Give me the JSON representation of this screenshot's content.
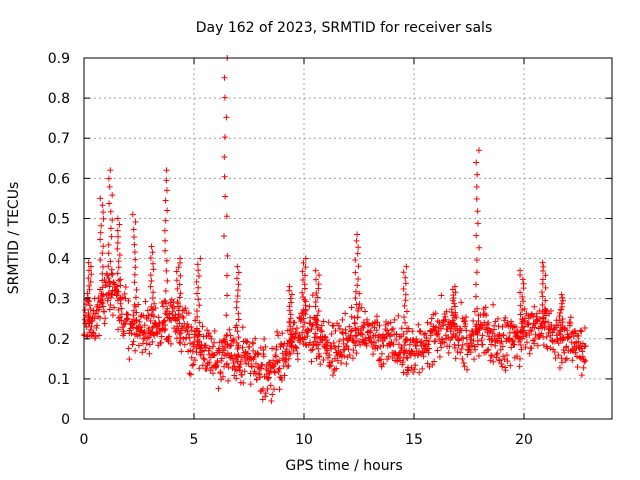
{
  "chart_data": {
    "type": "scatter",
    "title": "Day 162 of 2023, SRMTID for receiver sals",
    "xlabel": "GPS time / hours",
    "ylabel": "SRMTID / TECUs",
    "xlim": [
      0,
      24
    ],
    "ylim": [
      0,
      0.9
    ],
    "xticks": [
      0,
      5,
      10,
      15,
      20
    ],
    "yticks": [
      0,
      0.1,
      0.2,
      0.3,
      0.4,
      0.5,
      0.6,
      0.7,
      0.8,
      0.9
    ],
    "grid": true,
    "marker": "+",
    "color": "#ff0000",
    "envelope": [
      {
        "x": 0.0,
        "y": 0.25
      },
      {
        "x": 0.5,
        "y": 0.24
      },
      {
        "x": 1.0,
        "y": 0.33
      },
      {
        "x": 1.5,
        "y": 0.28
      },
      {
        "x": 2.0,
        "y": 0.24
      },
      {
        "x": 2.5,
        "y": 0.22
      },
      {
        "x": 3.0,
        "y": 0.21
      },
      {
        "x": 3.5,
        "y": 0.24
      },
      {
        "x": 4.0,
        "y": 0.25
      },
      {
        "x": 4.5,
        "y": 0.23
      },
      {
        "x": 5.0,
        "y": 0.19
      },
      {
        "x": 5.5,
        "y": 0.17
      },
      {
        "x": 6.0,
        "y": 0.16
      },
      {
        "x": 6.5,
        "y": 0.16
      },
      {
        "x": 7.0,
        "y": 0.16
      },
      {
        "x": 7.5,
        "y": 0.15
      },
      {
        "x": 8.0,
        "y": 0.14
      },
      {
        "x": 8.5,
        "y": 0.12
      },
      {
        "x": 9.0,
        "y": 0.15
      },
      {
        "x": 9.5,
        "y": 0.19
      },
      {
        "x": 10.0,
        "y": 0.24
      },
      {
        "x": 10.5,
        "y": 0.21
      },
      {
        "x": 11.0,
        "y": 0.17
      },
      {
        "x": 11.5,
        "y": 0.17
      },
      {
        "x": 12.0,
        "y": 0.19
      },
      {
        "x": 12.5,
        "y": 0.23
      },
      {
        "x": 13.0,
        "y": 0.21
      },
      {
        "x": 13.5,
        "y": 0.19
      },
      {
        "x": 14.0,
        "y": 0.18
      },
      {
        "x": 14.5,
        "y": 0.17
      },
      {
        "x": 15.0,
        "y": 0.17
      },
      {
        "x": 15.5,
        "y": 0.18
      },
      {
        "x": 16.0,
        "y": 0.21
      },
      {
        "x": 16.5,
        "y": 0.23
      },
      {
        "x": 17.0,
        "y": 0.22
      },
      {
        "x": 17.5,
        "y": 0.19
      },
      {
        "x": 18.0,
        "y": 0.22
      },
      {
        "x": 18.5,
        "y": 0.21
      },
      {
        "x": 19.0,
        "y": 0.19
      },
      {
        "x": 19.5,
        "y": 0.19
      },
      {
        "x": 20.0,
        "y": 0.21
      },
      {
        "x": 20.5,
        "y": 0.24
      },
      {
        "x": 21.0,
        "y": 0.23
      },
      {
        "x": 21.5,
        "y": 0.2
      },
      {
        "x": 22.0,
        "y": 0.19
      },
      {
        "x": 22.5,
        "y": 0.18
      },
      {
        "x": 22.8,
        "y": 0.18
      }
    ],
    "spikes": [
      {
        "x": 0.25,
        "ymax": 0.39
      },
      {
        "x": 0.8,
        "ymax": 0.55
      },
      {
        "x": 1.2,
        "ymax": 0.62
      },
      {
        "x": 1.6,
        "ymax": 0.5
      },
      {
        "x": 2.3,
        "ymax": 0.51
      },
      {
        "x": 3.1,
        "ymax": 0.43
      },
      {
        "x": 3.7,
        "ymax": 0.62
      },
      {
        "x": 4.3,
        "ymax": 0.4
      },
      {
        "x": 5.2,
        "ymax": 0.4
      },
      {
        "x": 6.45,
        "ymax": 0.9
      },
      {
        "x": 7.0,
        "ymax": 0.38
      },
      {
        "x": 9.4,
        "ymax": 0.33
      },
      {
        "x": 10.0,
        "ymax": 0.4
      },
      {
        "x": 10.6,
        "ymax": 0.37
      },
      {
        "x": 12.4,
        "ymax": 0.46
      },
      {
        "x": 14.6,
        "ymax": 0.38
      },
      {
        "x": 16.8,
        "ymax": 0.33
      },
      {
        "x": 17.9,
        "ymax": 0.67
      },
      {
        "x": 19.9,
        "ymax": 0.37
      },
      {
        "x": 20.9,
        "ymax": 0.39
      },
      {
        "x": 21.7,
        "ymax": 0.31
      }
    ],
    "noise": 0.05,
    "point_count": 1400
  }
}
